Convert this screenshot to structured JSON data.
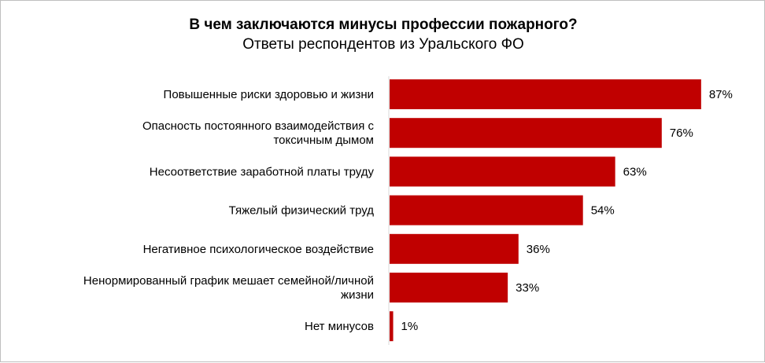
{
  "chart_data": {
    "type": "bar",
    "orientation": "horizontal",
    "title": "В чем заключаются минусы профессии пожарного?",
    "subtitle": "Ответы респондентов из Уральского ФО",
    "categories": [
      [
        "Повышенные риски здоровью и жизни"
      ],
      [
        "Опасность постоянного взаимодействия с",
        "токсичным дымом"
      ],
      [
        "Несоответствие заработной платы  труду"
      ],
      [
        "Тяжелый физический труд"
      ],
      [
        "Негативное психологическое воздействие"
      ],
      [
        "Ненормированный график мешает семейной/личной",
        "жизни"
      ],
      [
        "Нет минусов"
      ]
    ],
    "values": [
      87,
      76,
      63,
      54,
      36,
      33,
      1
    ],
    "value_labels": [
      "87%",
      "76%",
      "63%",
      "54%",
      "36%",
      "33%",
      "1%"
    ],
    "xlim": [
      0,
      100
    ],
    "bar_color": "#C00000",
    "grid": false,
    "legend": "none"
  }
}
